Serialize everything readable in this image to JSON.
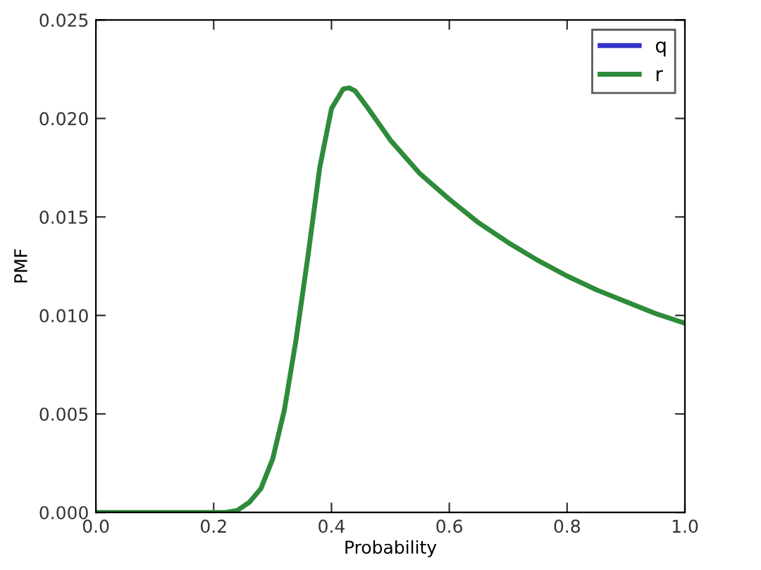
{
  "chart_data": {
    "type": "line",
    "xlabel": "Probability",
    "ylabel": "PMF",
    "x": [
      0.0,
      0.1,
      0.2,
      0.22,
      0.24,
      0.26,
      0.28,
      0.3,
      0.32,
      0.34,
      0.36,
      0.38,
      0.4,
      0.42,
      0.43,
      0.44,
      0.46,
      0.5,
      0.55,
      0.6,
      0.65,
      0.7,
      0.75,
      0.8,
      0.85,
      0.9,
      0.95,
      1.0
    ],
    "series": [
      {
        "name": "q",
        "color": "#3333cc",
        "values": [
          null,
          null,
          null,
          null,
          null,
          null,
          null,
          null,
          null,
          null,
          null,
          null,
          null,
          null,
          null,
          null,
          null,
          null,
          null,
          null,
          null,
          null,
          null,
          null,
          null,
          null,
          null,
          null
        ]
      },
      {
        "name": "r",
        "color": "#2e8b3a",
        "values": [
          0,
          0,
          0,
          0,
          0.0001,
          0.0005,
          0.0012,
          0.0027,
          0.0052,
          0.0088,
          0.013,
          0.0175,
          0.0205,
          0.0215,
          0.02155,
          0.0214,
          0.0206,
          0.0189,
          0.0172,
          0.0159,
          0.0147,
          0.0137,
          0.0128,
          0.012,
          0.0113,
          0.0107,
          0.0101,
          0.0096
        ]
      }
    ],
    "xlim": [
      0.0,
      1.0
    ],
    "xticks": [
      {
        "value": 0,
        "label": "0.0"
      },
      0.2,
      0.4,
      0.6,
      0.8,
      {
        "value": 1,
        "label": "1.0"
      }
    ],
    "ylim": [
      0.0,
      0.025
    ],
    "yticks": [
      {
        "value": 0,
        "label": "0.000"
      },
      0.005,
      {
        "value": 0.01,
        "label": "0.010"
      },
      0.015,
      {
        "value": 0.02,
        "label": "0.020"
      },
      0.025
    ],
    "legend": "top right",
    "grid": false,
    "marker": "none",
    "line_style": "solid"
  }
}
